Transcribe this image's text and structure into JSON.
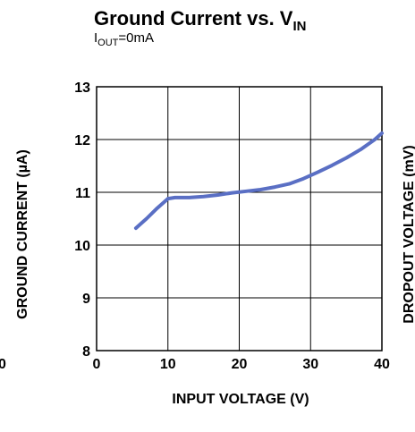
{
  "chart_data": {
    "type": "line",
    "title": {
      "main": "Ground Current vs. V",
      "main_sub": "IN"
    },
    "subtitle": {
      "pre": "I",
      "sub": "OUT",
      "post": "=0mA"
    },
    "xlabel": "INPUT VOLTAGE (V)",
    "ylabel": "GROUND CURRENT (µA)",
    "ylabel_right": "DROPOUT VOLTAGE (mV)",
    "left_edge_label": "0",
    "xlim": [
      0,
      40
    ],
    "ylim": [
      8,
      13
    ],
    "xticks": [
      "0",
      "10",
      "20",
      "30",
      "40"
    ],
    "yticks": [
      "8",
      "9",
      "10",
      "11",
      "12",
      "13"
    ],
    "grid": true,
    "line_color": "#5a6fc4",
    "series": [
      {
        "x": [
          5.5,
          7,
          8.5,
          10,
          11,
          13,
          15,
          17,
          19,
          21,
          23,
          25,
          27,
          29,
          31,
          33,
          35,
          37,
          39,
          40
        ],
        "y": [
          10.32,
          10.5,
          10.7,
          10.88,
          10.9,
          10.9,
          10.92,
          10.95,
          10.99,
          11.02,
          11.05,
          11.1,
          11.16,
          11.26,
          11.38,
          11.51,
          11.65,
          11.81,
          12.0,
          12.12
        ]
      }
    ]
  }
}
